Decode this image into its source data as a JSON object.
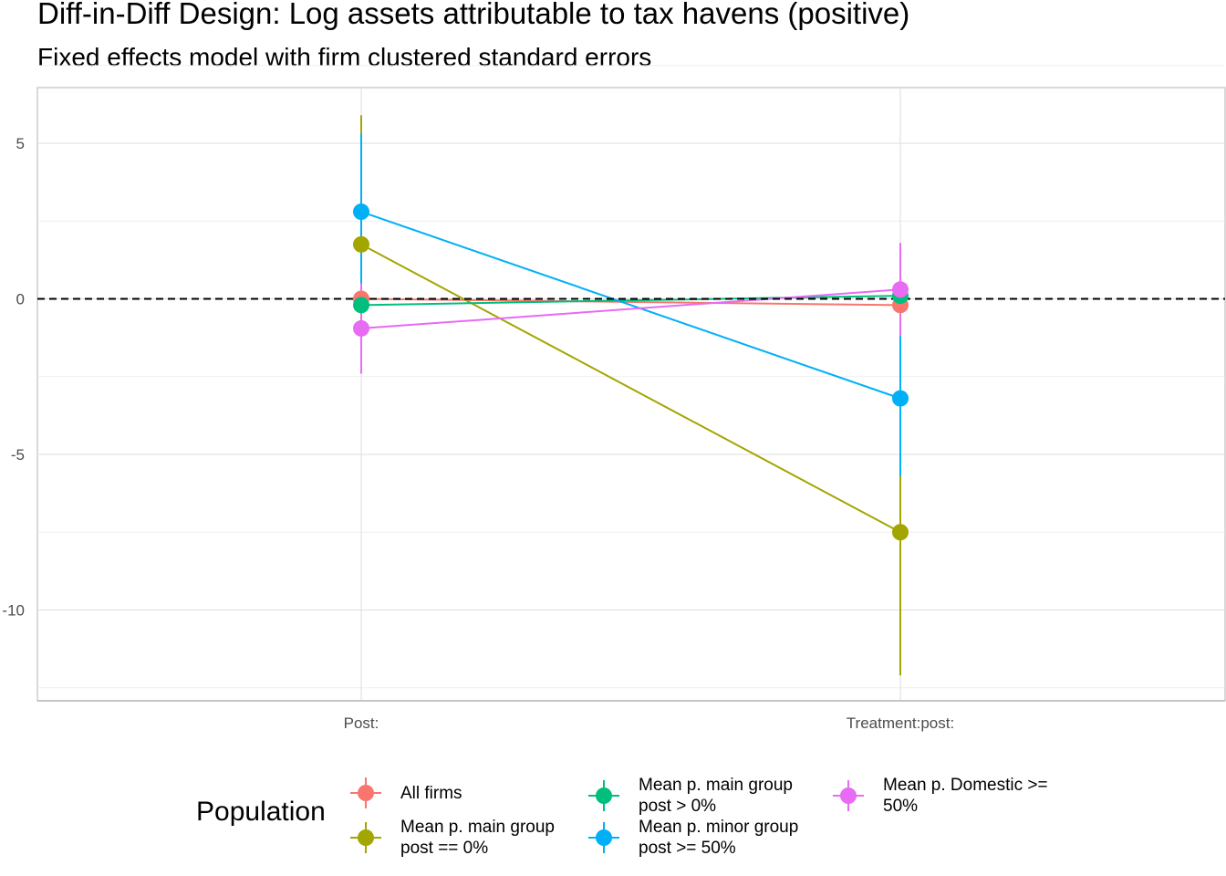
{
  "chart_data": {
    "type": "line",
    "title": "Diff-in-Diff Design: Log assets attributable to tax havens (positive)",
    "subtitle": "Fixed effects model with firm clustered standard errors",
    "xlabel": "",
    "ylabel": "",
    "categories": [
      "Post:",
      "Treatment:post:"
    ],
    "ylim": [
      -12.6,
      6.9
    ],
    "yticks": [
      5,
      0,
      -5,
      -10
    ],
    "ytick_labels": [
      "5",
      "0",
      "-5",
      "-10"
    ],
    "reference_line": 0,
    "grid": true,
    "legend": {
      "title": "Population",
      "position": "bottom"
    },
    "series": [
      {
        "name": "All firms",
        "color": "#F8766D",
        "values": [
          0.0,
          -0.2
        ],
        "lower": [
          -0.3,
          -0.5
        ],
        "upper": [
          0.3,
          0.1
        ]
      },
      {
        "name": "Mean p. main group\npost == 0%",
        "color": "#A3A500",
        "values": [
          1.75,
          -7.5
        ],
        "lower": [
          -2.4,
          -12.1
        ],
        "upper": [
          5.9,
          -2.9
        ]
      },
      {
        "name": "Mean p. main group\npost > 0%",
        "color": "#00BF7D",
        "values": [
          -0.2,
          0.1
        ],
        "lower": [
          -0.5,
          -0.2
        ],
        "upper": [
          0.1,
          0.4
        ]
      },
      {
        "name": "Mean p. minor group\npost >= 50%",
        "color": "#00B0F6",
        "values": [
          2.8,
          -3.2
        ],
        "lower": [
          0.4,
          -5.7
        ],
        "upper": [
          5.3,
          -1.1
        ]
      },
      {
        "name": "Mean p. Domestic >=\n50%",
        "color": "#E76BF3",
        "values": [
          -0.95,
          0.3
        ],
        "lower": [
          -2.4,
          -1.2
        ],
        "upper": [
          0.5,
          1.8
        ]
      }
    ]
  }
}
